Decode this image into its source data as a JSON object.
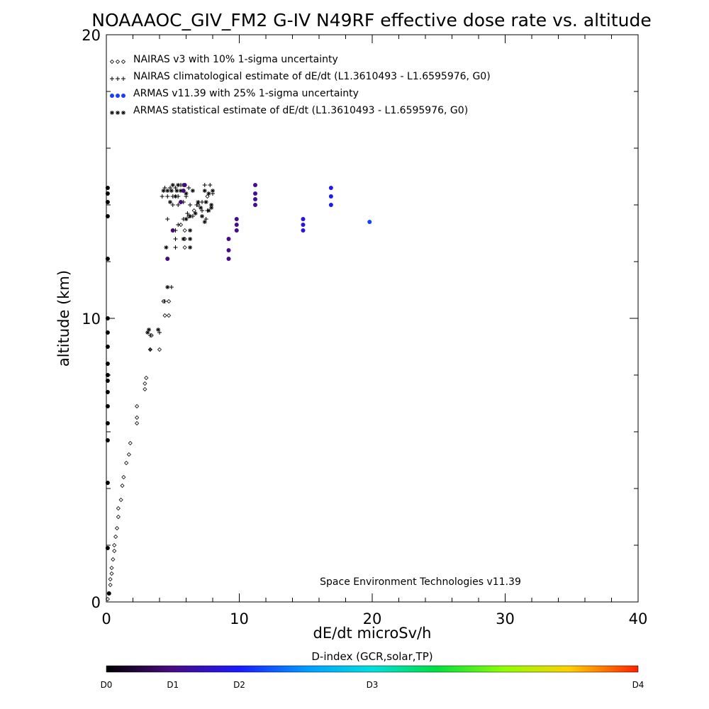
{
  "chart_data": {
    "type": "scatter",
    "title": "NOAAAOC_GIV_FM2 G-IV   N49RF  effective dose rate vs. altitude",
    "xlabel": "dE/dt microSv/h",
    "ylabel": "altitude (km)",
    "xlim": [
      0,
      40
    ],
    "ylim": [
      0,
      20
    ],
    "x_ticks": [
      "0",
      "10",
      "20",
      "30",
      "40"
    ],
    "y_ticks": [
      "0",
      "10",
      "20"
    ],
    "grid": false,
    "legend_position": "top-left",
    "legend": [
      {
        "marker": "◇◇◇",
        "label": "NAIRAS v3 with 10% 1-sigma uncertainty"
      },
      {
        "marker": "+++",
        "label": "NAIRAS climatological estimate of dE/dt (L1.3610493 - L1.6595976, G0)"
      },
      {
        "marker": "●●●",
        "label": "ARMAS v11.39 with 25% 1-sigma uncertainty"
      },
      {
        "marker": "***",
        "label": "ARMAS statistical estimate of dE/dt (L1.3610493 - L1.6595976, G0)"
      }
    ],
    "credit": "Space Environment Technologies v11.39",
    "colorbar": {
      "title": "D-index (GCR,solar,TP)",
      "labels": [
        {
          "text": "D0",
          "value": 0
        },
        {
          "text": "D1",
          "value": 5
        },
        {
          "text": "D2",
          "value": 10
        },
        {
          "text": "D3",
          "value": 20
        },
        {
          "text": "D4",
          "value": 40
        }
      ]
    },
    "series": [
      {
        "name": "NAIRAS v3 with 10% 1-sigma uncertainty",
        "marker": "diamond",
        "points": [
          [
            0.1,
            0.1
          ],
          [
            0.2,
            0.3
          ],
          [
            0.3,
            0.6
          ],
          [
            0.3,
            0.8
          ],
          [
            0.4,
            1.0
          ],
          [
            0.4,
            1.2
          ],
          [
            0.5,
            1.5
          ],
          [
            0.6,
            1.8
          ],
          [
            0.6,
            2.0
          ],
          [
            0.7,
            2.3
          ],
          [
            0.8,
            2.6
          ],
          [
            0.9,
            3.0
          ],
          [
            0.9,
            3.3
          ],
          [
            1.1,
            3.6
          ],
          [
            1.2,
            4.1
          ],
          [
            1.3,
            4.4
          ],
          [
            1.5,
            4.9
          ],
          [
            1.7,
            5.2
          ],
          [
            1.8,
            5.6
          ],
          [
            2.3,
            6.3
          ],
          [
            2.3,
            6.5
          ],
          [
            2.3,
            6.9
          ],
          [
            2.9,
            7.5
          ],
          [
            2.9,
            7.7
          ],
          [
            3.0,
            7.9
          ],
          [
            3.3,
            8.9
          ],
          [
            3.4,
            9.4
          ],
          [
            4.0,
            8.9
          ],
          [
            4.4,
            10.1
          ],
          [
            4.7,
            10.1
          ],
          [
            4.7,
            10.6
          ],
          [
            4.3,
            10.6
          ],
          [
            5.9,
            12.5
          ],
          [
            5.9,
            12.8
          ],
          [
            5.9,
            13.1
          ],
          [
            5.6,
            13.3
          ],
          [
            6.2,
            13.6
          ],
          [
            6.6,
            13.8
          ],
          [
            6.9,
            14.0
          ],
          [
            7.6,
            14.3
          ]
        ]
      },
      {
        "name": "NAIRAS climatological estimate of dE/dt (L1.3610493 - L1.6595976, G0)",
        "marker": "plus",
        "points": [
          [
            3.3,
            8.9
          ],
          [
            3.3,
            9.4
          ],
          [
            4.0,
            9.5
          ],
          [
            4.4,
            10.6
          ],
          [
            4.9,
            11.1
          ],
          [
            5.2,
            12.5
          ],
          [
            5.2,
            12.8
          ],
          [
            5.2,
            13.1
          ],
          [
            5.4,
            13.3
          ],
          [
            5.8,
            13.5
          ],
          [
            6.1,
            13.7
          ],
          [
            6.5,
            13.6
          ],
          [
            7.2,
            13.8
          ],
          [
            7.5,
            13.5
          ],
          [
            7.6,
            13.8
          ],
          [
            4.6,
            13.5
          ],
          [
            5.0,
            14.0
          ],
          [
            5.4,
            14.0
          ],
          [
            5.8,
            14.1
          ],
          [
            6.3,
            14.0
          ],
          [
            4.2,
            14.3
          ],
          [
            4.6,
            14.3
          ],
          [
            5.0,
            14.3
          ],
          [
            5.4,
            14.3
          ],
          [
            6.0,
            14.3
          ],
          [
            4.8,
            14.6
          ],
          [
            5.2,
            14.6
          ],
          [
            5.6,
            14.7
          ],
          [
            6.2,
            14.6
          ],
          [
            7.4,
            14.7
          ],
          [
            7.8,
            14.7
          ],
          [
            8.0,
            14.4
          ],
          [
            7.2,
            14.1
          ],
          [
            6.8,
            14.0
          ],
          [
            4.4,
            14.6
          ]
        ]
      },
      {
        "name": "ARMAS statistical estimate of dE/dt (L1.3610493 - L1.6595976, G0)",
        "marker": "asterisk",
        "points": [
          [
            3.1,
            9.5
          ],
          [
            3.2,
            9.6
          ],
          [
            3.9,
            9.6
          ],
          [
            4.6,
            11.1
          ],
          [
            4.5,
            12.5
          ],
          [
            5.8,
            12.8
          ],
          [
            6.3,
            12.5
          ],
          [
            6.3,
            12.8
          ],
          [
            6.3,
            13.1
          ],
          [
            6.0,
            13.5
          ],
          [
            6.3,
            13.6
          ],
          [
            6.7,
            13.7
          ],
          [
            7.2,
            13.6
          ],
          [
            7.4,
            13.4
          ],
          [
            7.7,
            13.8
          ],
          [
            7.9,
            13.9
          ],
          [
            7.1,
            13.9
          ],
          [
            6.9,
            14.1
          ],
          [
            4.3,
            14.5
          ],
          [
            4.6,
            14.5
          ],
          [
            4.9,
            14.5
          ],
          [
            5.3,
            14.5
          ],
          [
            5.6,
            14.5
          ],
          [
            6.0,
            14.4
          ],
          [
            6.5,
            14.5
          ],
          [
            5.0,
            14.7
          ],
          [
            5.4,
            14.7
          ],
          [
            5.8,
            14.7
          ],
          [
            7.4,
            14.5
          ],
          [
            7.7,
            14.4
          ],
          [
            8.0,
            14.5
          ],
          [
            7.5,
            14.1
          ],
          [
            7.9,
            14.0
          ],
          [
            4.8,
            14.1
          ],
          [
            5.2,
            14.3
          ]
        ]
      },
      {
        "name": "ARMAS v11.39 with 25% 1-sigma uncertainty",
        "marker": "filled-circle",
        "points": [
          {
            "x": 0.1,
            "y": 1.9,
            "d": 0.1
          },
          {
            "x": 0.1,
            "y": 4.2,
            "d": 0.1
          },
          {
            "x": 0.1,
            "y": 5.7,
            "d": 0.1
          },
          {
            "x": 0.1,
            "y": 6.3,
            "d": 0.1
          },
          {
            "x": 0.1,
            "y": 6.9,
            "d": 0.1
          },
          {
            "x": 0.1,
            "y": 7.4,
            "d": 0.1
          },
          {
            "x": 0.1,
            "y": 7.8,
            "d": 0.1
          },
          {
            "x": 0.1,
            "y": 8.0,
            "d": 0.1
          },
          {
            "x": 0.1,
            "y": 8.4,
            "d": 0.1
          },
          {
            "x": 0.1,
            "y": 9.0,
            "d": 0.1
          },
          {
            "x": 0.1,
            "y": 9.5,
            "d": 0.1
          },
          {
            "x": 0.1,
            "y": 10.0,
            "d": 0.1
          },
          {
            "x": 0.1,
            "y": 12.1,
            "d": 0.1
          },
          {
            "x": 0.1,
            "y": 13.6,
            "d": 0.1
          },
          {
            "x": 0.1,
            "y": 14.1,
            "d": 0.1
          },
          {
            "x": 0.1,
            "y": 14.4,
            "d": 0.1
          },
          {
            "x": 0.1,
            "y": 14.6,
            "d": 0.1
          },
          {
            "x": 0.2,
            "y": 0.3,
            "d": 0.1
          },
          {
            "x": 4.6,
            "y": 12.1,
            "d": 4.5
          },
          {
            "x": 5.0,
            "y": 13.1,
            "d": 4.5
          },
          {
            "x": 5.6,
            "y": 14.1,
            "d": 4.6
          },
          {
            "x": 5.8,
            "y": 14.5,
            "d": 4.6
          },
          {
            "x": 5.9,
            "y": 14.7,
            "d": 4.6
          },
          {
            "x": 9.2,
            "y": 12.1,
            "d": 5.2
          },
          {
            "x": 9.2,
            "y": 12.4,
            "d": 5.2
          },
          {
            "x": 9.2,
            "y": 12.8,
            "d": 5.2
          },
          {
            "x": 9.8,
            "y": 13.1,
            "d": 5.2
          },
          {
            "x": 9.8,
            "y": 13.3,
            "d": 5.2
          },
          {
            "x": 9.8,
            "y": 13.5,
            "d": 5.2
          },
          {
            "x": 11.2,
            "y": 14.0,
            "d": 5.5
          },
          {
            "x": 11.2,
            "y": 14.2,
            "d": 5.5
          },
          {
            "x": 11.2,
            "y": 14.4,
            "d": 5.5
          },
          {
            "x": 11.2,
            "y": 14.7,
            "d": 5.5
          },
          {
            "x": 14.8,
            "y": 13.1,
            "d": 8.5
          },
          {
            "x": 14.8,
            "y": 13.3,
            "d": 8.5
          },
          {
            "x": 14.8,
            "y": 13.5,
            "d": 8.5
          },
          {
            "x": 16.9,
            "y": 14.0,
            "d": 9.5
          },
          {
            "x": 16.9,
            "y": 14.3,
            "d": 9.5
          },
          {
            "x": 16.9,
            "y": 14.6,
            "d": 9.5
          },
          {
            "x": 19.8,
            "y": 13.4,
            "d": 11.5
          }
        ]
      }
    ]
  }
}
